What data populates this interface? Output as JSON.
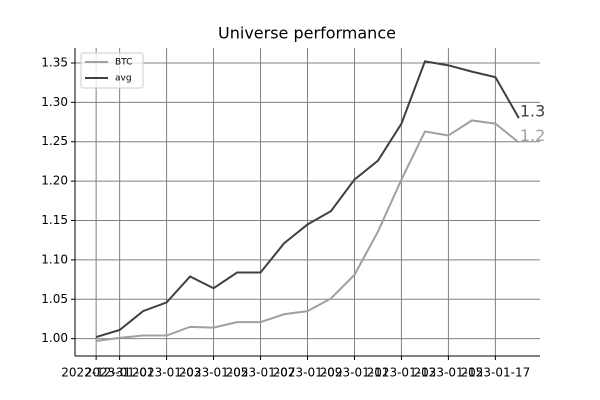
{
  "chart_data": {
    "type": "line",
    "title": "Universe performance",
    "x": [
      "2022-12-31",
      "2023-01-01",
      "2023-01-02",
      "2023-01-03",
      "2023-01-04",
      "2023-01-05",
      "2023-01-06",
      "2023-01-07",
      "2023-01-08",
      "2023-01-09",
      "2023-01-10",
      "2023-01-11",
      "2023-01-12",
      "2023-01-13",
      "2023-01-14",
      "2023-01-15",
      "2023-01-16",
      "2023-01-17",
      "2023-01-18"
    ],
    "series": [
      {
        "name": "BTC",
        "color": "#a0a0a0",
        "end_label": "1.2",
        "values": [
          0.997,
          1.001,
          1.004,
          1.004,
          1.015,
          1.014,
          1.021,
          1.021,
          1.031,
          1.035,
          1.051,
          1.081,
          1.136,
          1.202,
          1.263,
          1.258,
          1.277,
          1.273,
          1.249
        ]
      },
      {
        "name": "avg",
        "color": "#404040",
        "end_label": "1.3",
        "values": [
          1.002,
          1.011,
          1.035,
          1.046,
          1.079,
          1.064,
          1.084,
          1.084,
          1.121,
          1.145,
          1.162,
          1.202,
          1.226,
          1.273,
          1.352,
          1.347,
          1.339,
          1.332,
          1.28
        ]
      }
    ],
    "xlim": [
      "2022-12-31",
      "2023-01-18"
    ],
    "xticks": [
      "2022-12-31",
      "2023-01-01",
      "2023-01-03",
      "2023-01-05",
      "2023-01-07",
      "2023-01-09",
      "2023-01-11",
      "2023-01-13",
      "2023-01-15",
      "2023-01-17"
    ],
    "ylim": [
      0.978,
      1.369
    ],
    "yticks": [
      {
        "value": 1.0,
        "label": "1.00"
      },
      {
        "value": 1.05,
        "label": "1.05"
      },
      {
        "value": 1.1,
        "label": "1.10"
      },
      {
        "value": 1.15,
        "label": "1.15"
      },
      {
        "value": 1.2,
        "label": "1.20"
      },
      {
        "value": 1.25,
        "label": "1.25"
      },
      {
        "value": 1.3,
        "label": "1.30"
      },
      {
        "value": 1.35,
        "label": "1.35"
      }
    ],
    "grid": true,
    "legend": "upper left"
  }
}
